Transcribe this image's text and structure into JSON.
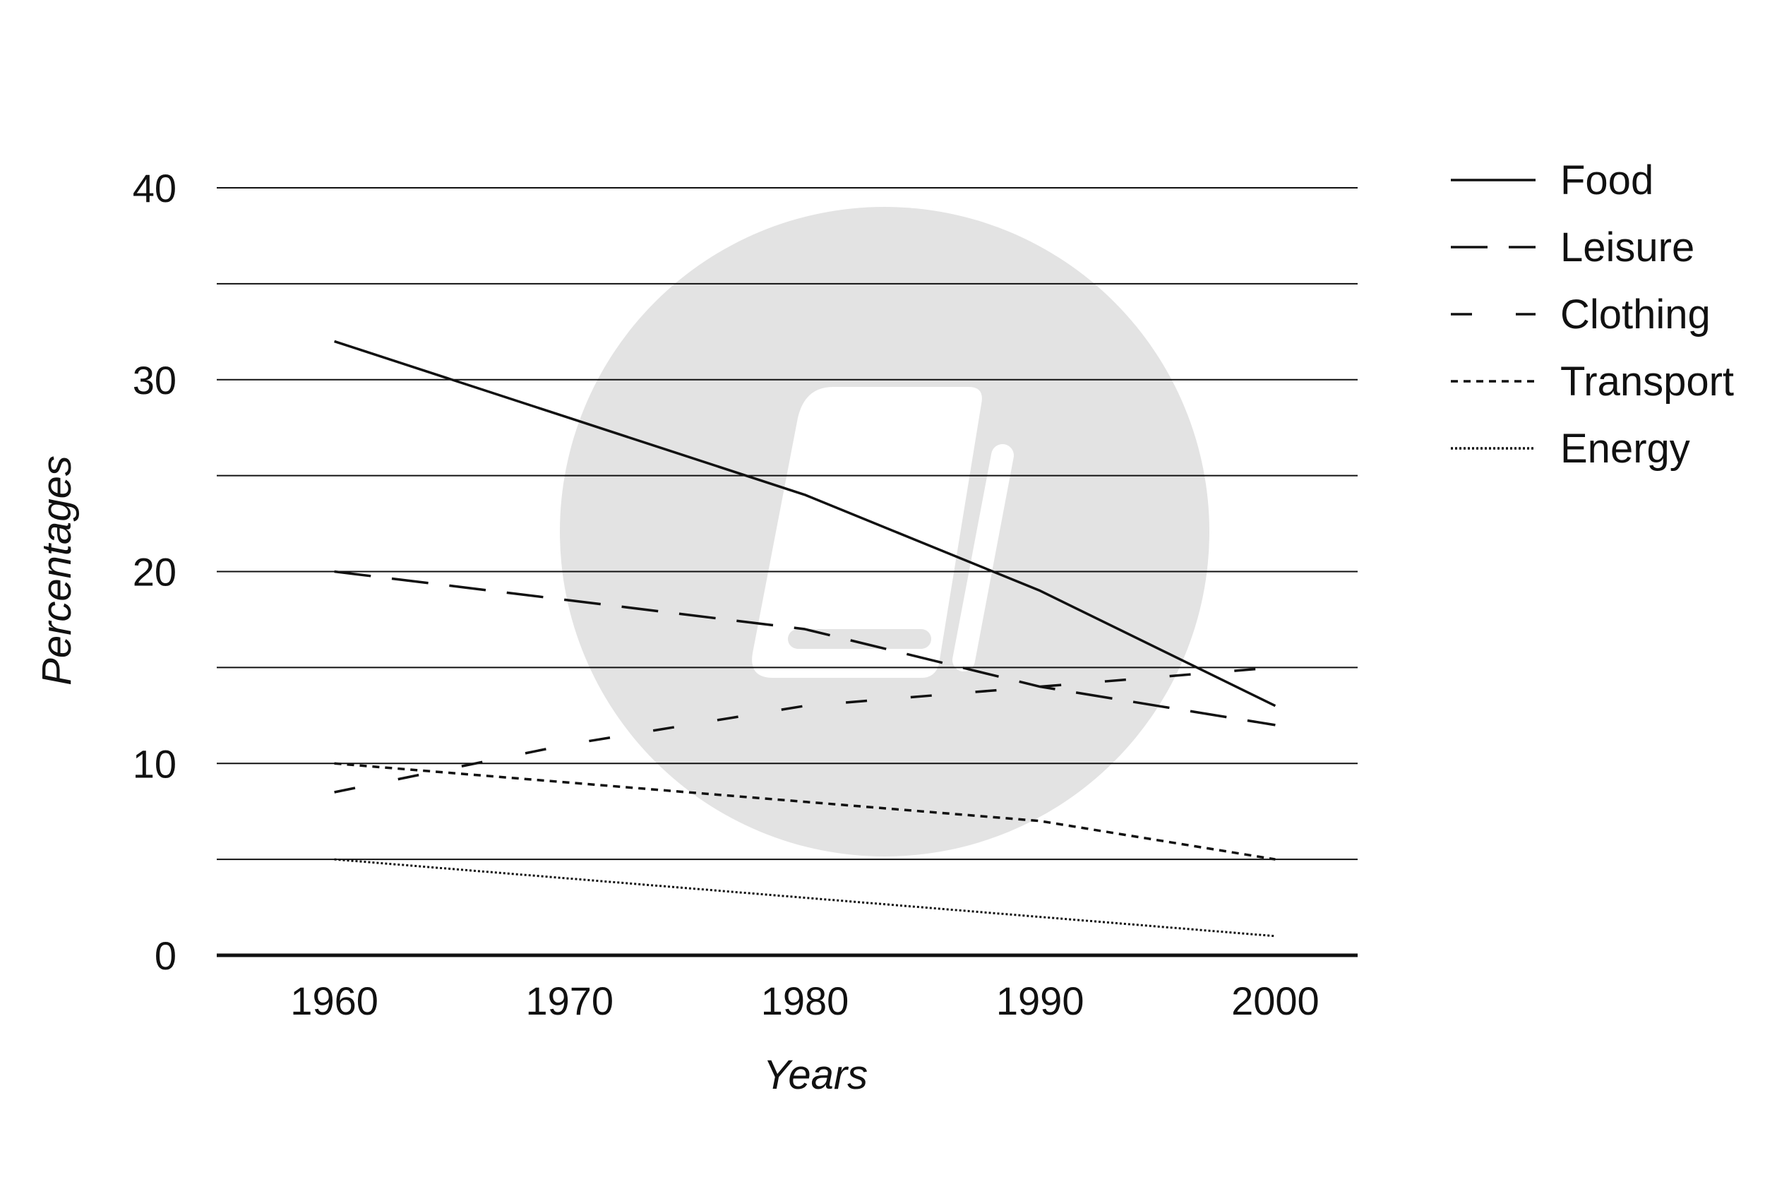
{
  "chart_data": {
    "type": "line",
    "xlabel": "Years",
    "ylabel": "Percentages",
    "x": [
      1960,
      1970,
      1980,
      1990,
      2000
    ],
    "xlim": [
      1955,
      2003.5
    ],
    "ylim": [
      0,
      40
    ],
    "yticks": [
      0,
      10,
      20,
      30,
      40
    ],
    "xticks": [
      1960,
      1970,
      1980,
      1990,
      2000
    ],
    "tick_labels": {
      "y": [
        "0",
        "10",
        "20",
        "30",
        "40"
      ],
      "x": [
        "1960",
        "1970",
        "1980",
        "1990",
        "2000"
      ]
    },
    "grid": true,
    "grid_step": 5,
    "legend_position": "right",
    "series": [
      {
        "name": "Food",
        "style": "solid",
        "values": [
          32,
          28,
          24,
          19,
          13
        ]
      },
      {
        "name": "Leisure",
        "style": "long-dash",
        "values": [
          20,
          18.5,
          17,
          14,
          12
        ]
      },
      {
        "name": "Clothing",
        "style": "dash",
        "values": [
          8.5,
          11,
          13,
          14,
          15
        ]
      },
      {
        "name": "Transport",
        "style": "short-dash",
        "values": [
          10,
          9,
          8,
          7,
          5
        ]
      },
      {
        "name": "Energy",
        "style": "dotted",
        "values": [
          5,
          4,
          3,
          2,
          1
        ]
      }
    ],
    "colors": {
      "line": "#111111",
      "grid": "#111111",
      "watermark": "#e3e3e3"
    }
  },
  "watermark": {
    "icon": "book-logo-icon"
  }
}
